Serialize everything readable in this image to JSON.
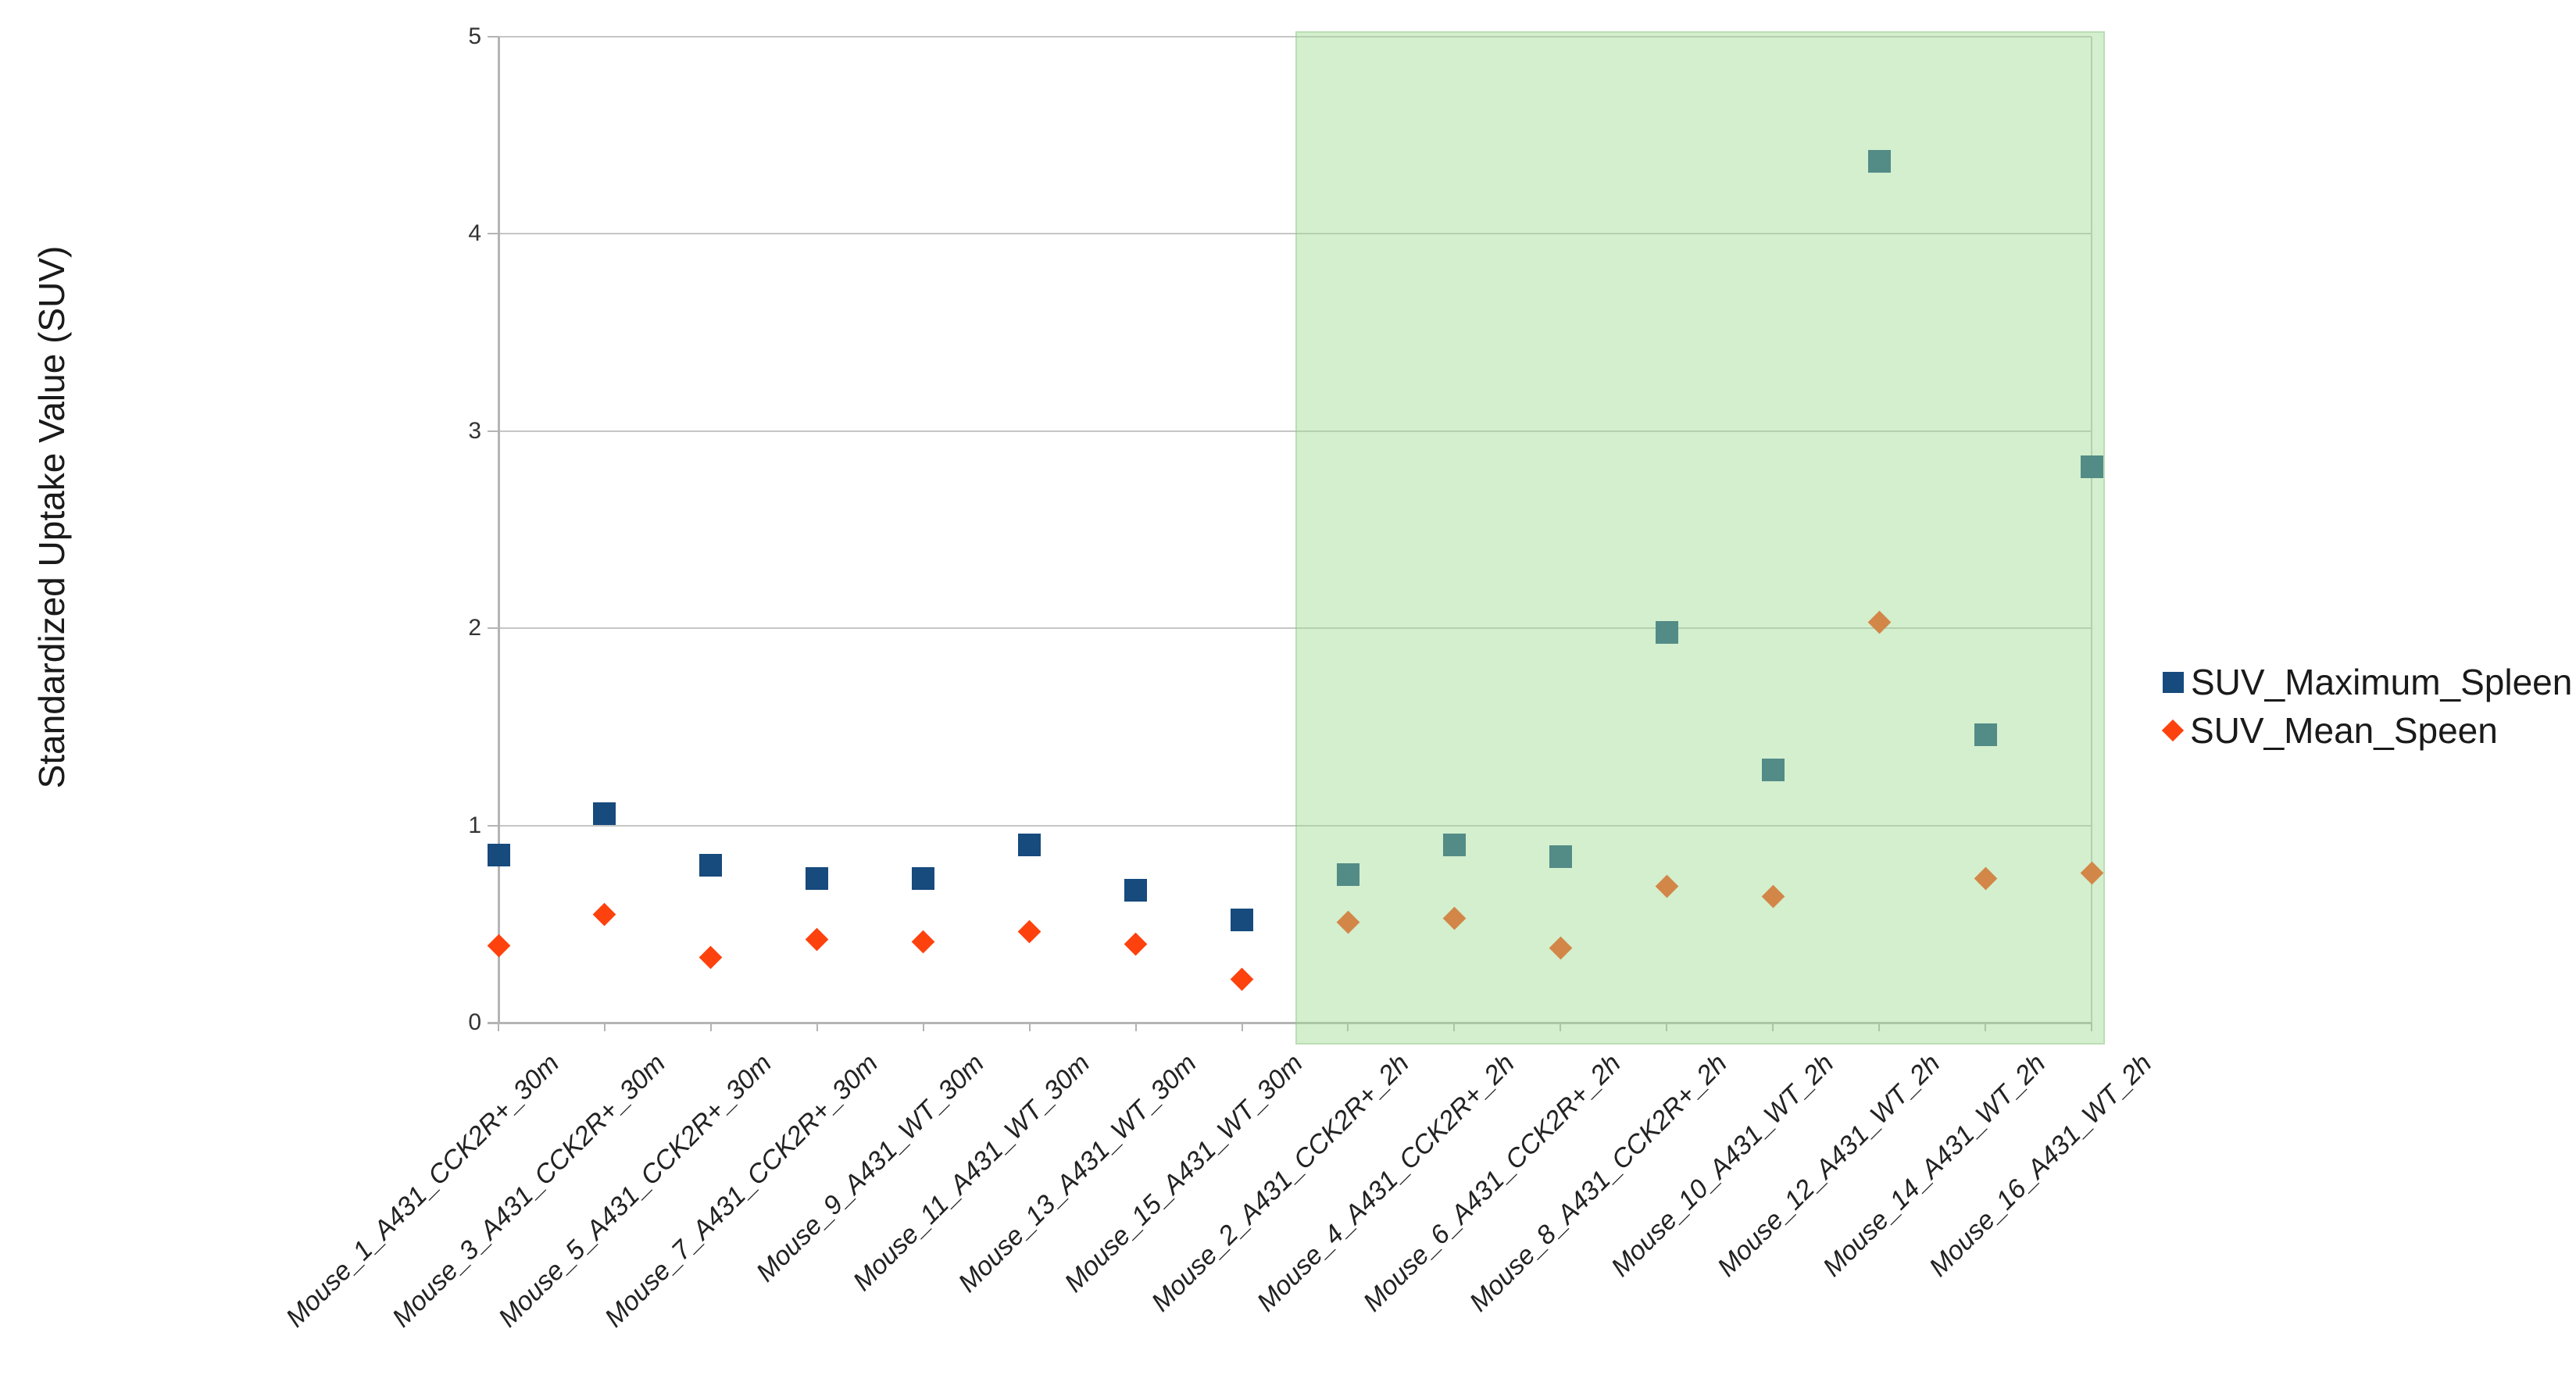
{
  "chart_data": {
    "type": "scatter",
    "title": "",
    "xlabel": "",
    "ylabel": "Standardized Uptake Value (SUV)",
    "ylim": [
      0,
      5
    ],
    "yticks": [
      0,
      1,
      2,
      3,
      4,
      5
    ],
    "grid": true,
    "legend_position": "right-middle",
    "categories": [
      "Mouse_1_A431_CCK2R+_30m",
      "Mouse_3_A431_CCK2R+_30m",
      "Mouse_5_A431_CCK2R+_30m",
      "Mouse_7_A431_CCK2R+_30m",
      "Mouse_9_A431_WT_30m",
      "Mouse_11_A431_WT_30m",
      "Mouse_13_A431_WT_30m",
      "Mouse_15_A431_WT_30m",
      "Mouse_2_A431_CCK2R+_2h",
      "Mouse_4_A431_CCK2R+_2h",
      "Mouse_6_A431_CCK2R+_2h",
      "Mouse_8_A431_CCK2R+_2h",
      "Mouse_10_A431_WT_2h",
      "Mouse_12_A431_WT_2h",
      "Mouse_14_A431_WT_2h",
      "Mouse_16_A431_WT_2h"
    ],
    "series": [
      {
        "name": "SUV_Maximum_Spleen",
        "marker": "square",
        "color": "#174a7d",
        "values": [
          0.85,
          1.06,
          0.8,
          0.73,
          0.73,
          0.9,
          0.67,
          0.52,
          0.75,
          0.9,
          0.84,
          1.98,
          1.28,
          4.37,
          1.46,
          2.82
        ]
      },
      {
        "name": "SUV_Mean_Speen",
        "marker": "diamond",
        "color": "#fd420e",
        "values": [
          0.39,
          0.55,
          0.33,
          0.42,
          0.41,
          0.46,
          0.4,
          0.22,
          0.51,
          0.53,
          0.38,
          0.69,
          0.64,
          2.03,
          0.73,
          0.76
        ]
      }
    ],
    "highlight_region": {
      "start_category": "Mouse_2_A431_CCK2R+_2h",
      "end_category": "Mouse_16_A431_WT_2h",
      "start_index": 8,
      "end_index": 15,
      "fill": "#9edb93",
      "alpha": 0.45
    },
    "style": {
      "gridline_color": "#c6c6c6",
      "axis_color": "#b4b4b4",
      "tick_label_color": "#333333",
      "category_label_color": "#222222"
    }
  }
}
